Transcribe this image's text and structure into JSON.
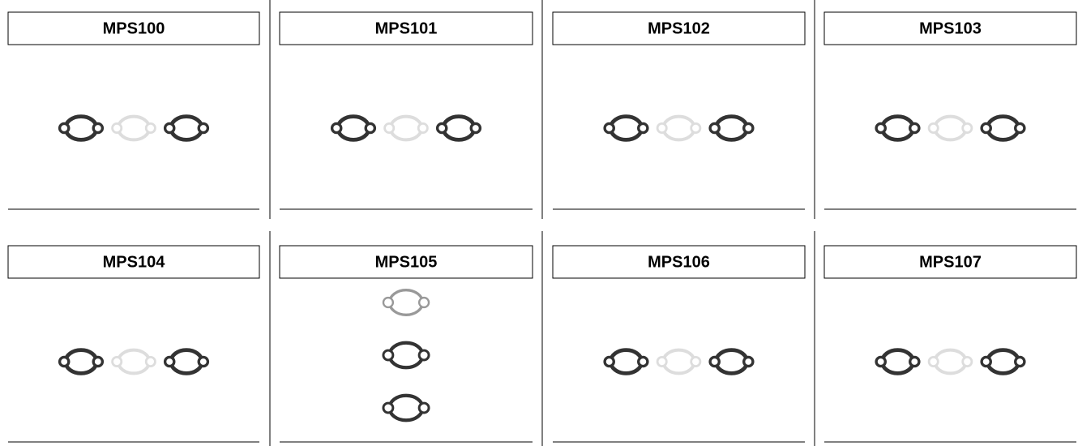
{
  "products": [
    "MPS100",
    "MPS101",
    "MPS102",
    "MPS103",
    "MPS104",
    "MPS105",
    "MPS106",
    "MPS107"
  ]
}
